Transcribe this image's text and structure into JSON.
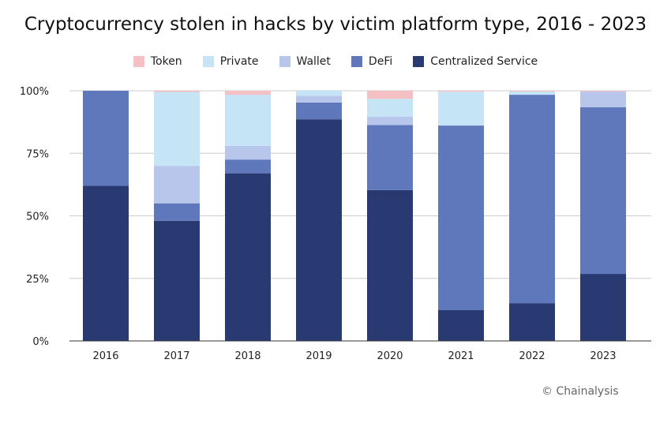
{
  "chart_data": {
    "type": "bar",
    "stacked": true,
    "title": "Cryptocurrency stolen in hacks by victim platform type, 2016 - 2023",
    "categories": [
      "2016",
      "2017",
      "2018",
      "2019",
      "2020",
      "2021",
      "2022",
      "2023"
    ],
    "ylim": [
      0,
      100
    ],
    "yticks": [
      "0%",
      "25%",
      "50%",
      "75%",
      "100%"
    ],
    "grid": true,
    "legend_position": "top",
    "series": [
      {
        "name": "Centralized Service",
        "color": "#293a73",
        "values": [
          62,
          48,
          67,
          88.6,
          60.3,
          12.3,
          15.1,
          26.8
        ]
      },
      {
        "name": "DeFi",
        "color": "#5f78bb",
        "values": [
          38,
          7,
          5.5,
          6.7,
          26,
          73.8,
          83.3,
          66.6
        ]
      },
      {
        "name": "Wallet",
        "color": "#b8c6ec",
        "values": [
          0,
          15,
          5.5,
          2.7,
          3.3,
          0,
          0,
          6.3
        ]
      },
      {
        "name": "Private",
        "color": "#c5e4f6",
        "values": [
          0,
          29.5,
          20.4,
          2,
          7.2,
          13.5,
          1.3,
          0
        ]
      },
      {
        "name": "Token",
        "color": "#f4c0c4",
        "values": [
          0,
          0.5,
          1.6,
          0,
          3.2,
          0.4,
          0.3,
          0.3
        ]
      }
    ],
    "legend_order": [
      "Token",
      "Private",
      "Wallet",
      "DeFi",
      "Centralized Service"
    ]
  },
  "credit": "© Chainalysis"
}
